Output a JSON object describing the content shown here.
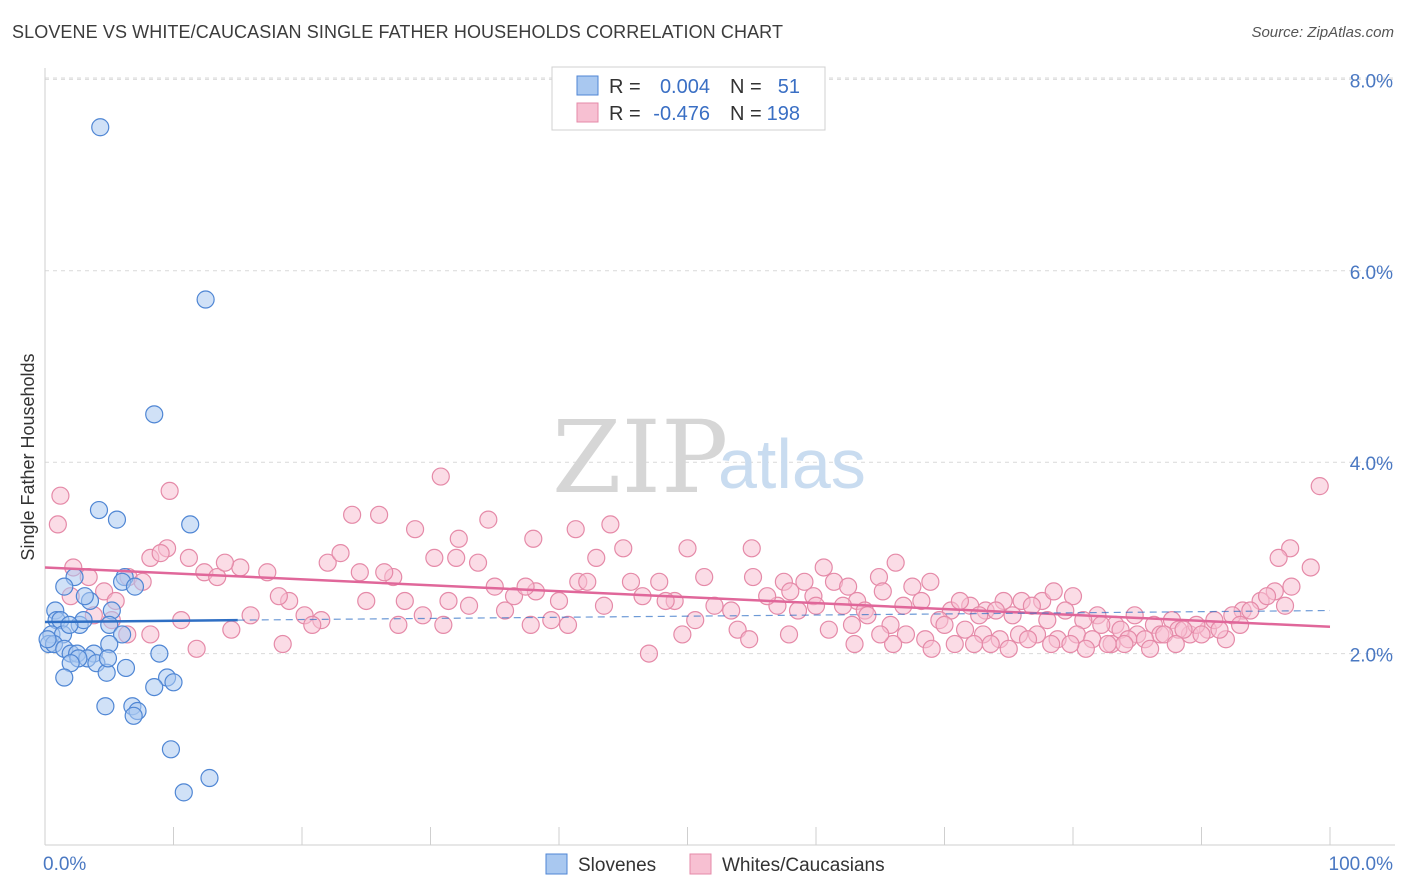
{
  "title": "SLOVENE VS WHITE/CAUCASIAN SINGLE FATHER HOUSEHOLDS CORRELATION CHART",
  "source": "Source: ZipAtlas.com",
  "watermark": {
    "zip": "ZIP",
    "atlas": "atlas"
  },
  "colors": {
    "slovene_fill": "#a9c8f0",
    "slovene_stroke": "#4f86d4",
    "slovene_line": "#2f6fc4",
    "white_fill": "#f7c0d2",
    "white_stroke": "#e58aa8",
    "white_line": "#e0679a",
    "grid": "#d9d9d9",
    "axis_text": "#4a78c2"
  },
  "legend": {
    "row1": {
      "r_label": "R =",
      "r_value": "0.004",
      "n_label": "N =",
      "n_value": "51"
    },
    "row2": {
      "r_label": "R =",
      "r_value": "-0.476",
      "n_label": "N =",
      "n_value": "198"
    }
  },
  "bottom_legend": {
    "s1": "Slovenes",
    "s2": "Whites/Caucasians"
  },
  "chart_data": {
    "type": "scatter",
    "title": "SLOVENE VS WHITE/CAUCASIAN SINGLE FATHER HOUSEHOLDS CORRELATION CHART",
    "xlabel": "",
    "ylabel": "Single Father Households",
    "xlim": [
      0,
      100
    ],
    "ylim": [
      0,
      8.2
    ],
    "x_tick_labels": [
      "0.0%",
      "100.0%"
    ],
    "y_ticks": [
      2.0,
      4.0,
      6.0,
      8.0
    ],
    "y_tick_labels": [
      "2.0%",
      "4.0%",
      "6.0%",
      "8.0%"
    ],
    "legend_position": "top-center",
    "series": [
      {
        "name": "Slovenes",
        "r": 0.004,
        "n": 51,
        "trend": {
          "x": [
            0,
            15
          ],
          "y": [
            2.33,
            2.35
          ]
        },
        "trend_ext": {
          "x": [
            15,
            100
          ],
          "y": [
            2.35,
            2.45
          ]
        },
        "points": [
          [
            4.3,
            7.5
          ],
          [
            12.5,
            5.7
          ],
          [
            8.5,
            4.5
          ],
          [
            4.2,
            3.5
          ],
          [
            5.6,
            3.4
          ],
          [
            11.3,
            3.35
          ],
          [
            2.3,
            2.8
          ],
          [
            1.5,
            2.7
          ],
          [
            6.2,
            2.8
          ],
          [
            3.5,
            2.55
          ],
          [
            6.0,
            2.75
          ],
          [
            7.0,
            2.7
          ],
          [
            0.8,
            2.45
          ],
          [
            5.2,
            2.45
          ],
          [
            0.9,
            2.35
          ],
          [
            1.2,
            2.35
          ],
          [
            2.7,
            2.3
          ],
          [
            3.0,
            2.35
          ],
          [
            5.0,
            2.3
          ],
          [
            0.5,
            2.2
          ],
          [
            1.4,
            2.2
          ],
          [
            6.0,
            2.2
          ],
          [
            0.3,
            2.1
          ],
          [
            0.7,
            2.1
          ],
          [
            1.5,
            2.05
          ],
          [
            2.0,
            2.0
          ],
          [
            2.5,
            2.0
          ],
          [
            3.8,
            2.0
          ],
          [
            3.3,
            1.95
          ],
          [
            5.0,
            2.1
          ],
          [
            2.6,
            1.95
          ],
          [
            8.9,
            2.0
          ],
          [
            2.0,
            1.9
          ],
          [
            4.0,
            1.9
          ],
          [
            6.3,
            1.85
          ],
          [
            4.8,
            1.8
          ],
          [
            1.5,
            1.75
          ],
          [
            9.5,
            1.75
          ],
          [
            10.0,
            1.7
          ],
          [
            8.5,
            1.65
          ],
          [
            4.7,
            1.45
          ],
          [
            6.8,
            1.45
          ],
          [
            7.2,
            1.4
          ],
          [
            6.9,
            1.35
          ],
          [
            9.8,
            1.0
          ],
          [
            12.8,
            0.7
          ],
          [
            10.8,
            0.55
          ],
          [
            0.2,
            2.15
          ],
          [
            1.9,
            2.3
          ],
          [
            3.1,
            2.6
          ],
          [
            4.9,
            1.95
          ]
        ]
      },
      {
        "name": "Whites/Caucasians",
        "r": -0.476,
        "n": 198,
        "trend": {
          "x": [
            0,
            100
          ],
          "y": [
            2.9,
            2.28
          ]
        },
        "points": [
          [
            1.2,
            3.65
          ],
          [
            1.0,
            3.35
          ],
          [
            9.7,
            3.7
          ],
          [
            23.9,
            3.45
          ],
          [
            26.0,
            3.45
          ],
          [
            28.8,
            3.3
          ],
          [
            30.8,
            3.85
          ],
          [
            34.5,
            3.4
          ],
          [
            32.2,
            3.2
          ],
          [
            38.0,
            3.2
          ],
          [
            41.3,
            3.3
          ],
          [
            44.0,
            3.35
          ],
          [
            50.0,
            3.1
          ],
          [
            55.0,
            3.1
          ],
          [
            99.2,
            3.75
          ],
          [
            96.9,
            3.1
          ],
          [
            98.5,
            2.9
          ],
          [
            96.0,
            3.0
          ],
          [
            2.2,
            2.9
          ],
          [
            3.4,
            2.8
          ],
          [
            6.5,
            2.8
          ],
          [
            8.2,
            3.0
          ],
          [
            11.2,
            3.0
          ],
          [
            12.4,
            2.85
          ],
          [
            13.4,
            2.8
          ],
          [
            15.2,
            2.9
          ],
          [
            17.3,
            2.85
          ],
          [
            19.0,
            2.55
          ],
          [
            22.0,
            2.95
          ],
          [
            24.5,
            2.85
          ],
          [
            27.1,
            2.8
          ],
          [
            30.3,
            3.0
          ],
          [
            32.0,
            3.0
          ],
          [
            33.7,
            2.95
          ],
          [
            35.0,
            2.7
          ],
          [
            36.5,
            2.6
          ],
          [
            38.2,
            2.65
          ],
          [
            40.0,
            2.55
          ],
          [
            41.5,
            2.75
          ],
          [
            42.9,
            3.0
          ],
          [
            45.6,
            2.75
          ],
          [
            47.8,
            2.75
          ],
          [
            49.0,
            2.55
          ],
          [
            51.3,
            2.8
          ],
          [
            53.4,
            2.45
          ],
          [
            55.1,
            2.8
          ],
          [
            57.0,
            2.5
          ],
          [
            58.6,
            2.45
          ],
          [
            59.1,
            2.75
          ],
          [
            60.6,
            2.9
          ],
          [
            61.4,
            2.75
          ],
          [
            62.5,
            2.7
          ],
          [
            63.2,
            2.55
          ],
          [
            64.9,
            2.8
          ],
          [
            66.2,
            2.95
          ],
          [
            67.5,
            2.7
          ],
          [
            68.9,
            2.75
          ],
          [
            70.5,
            2.45
          ],
          [
            72.0,
            2.5
          ],
          [
            73.2,
            2.45
          ],
          [
            74.6,
            2.55
          ],
          [
            76.0,
            2.55
          ],
          [
            77.6,
            2.55
          ],
          [
            78.5,
            2.65
          ],
          [
            80.0,
            2.6
          ],
          [
            81.9,
            2.4
          ],
          [
            83.3,
            2.3
          ],
          [
            84.8,
            2.4
          ],
          [
            86.3,
            2.3
          ],
          [
            87.7,
            2.35
          ],
          [
            89.1,
            2.2
          ],
          [
            90.5,
            2.25
          ],
          [
            91.9,
            2.15
          ],
          [
            93.2,
            2.45
          ],
          [
            94.6,
            2.55
          ],
          [
            95.7,
            2.65
          ],
          [
            97.0,
            2.7
          ],
          [
            4.6,
            2.65
          ],
          [
            5.5,
            2.55
          ],
          [
            7.6,
            2.75
          ],
          [
            9.5,
            3.1
          ],
          [
            10.6,
            2.35
          ],
          [
            14.0,
            2.95
          ],
          [
            16.0,
            2.4
          ],
          [
            18.2,
            2.6
          ],
          [
            20.2,
            2.4
          ],
          [
            21.5,
            2.35
          ],
          [
            23.0,
            3.05
          ],
          [
            25.0,
            2.55
          ],
          [
            26.4,
            2.85
          ],
          [
            28.0,
            2.55
          ],
          [
            29.4,
            2.4
          ],
          [
            31.4,
            2.55
          ],
          [
            33.0,
            2.5
          ],
          [
            35.8,
            2.45
          ],
          [
            37.4,
            2.7
          ],
          [
            39.4,
            2.35
          ],
          [
            40.7,
            2.3
          ],
          [
            42.2,
            2.75
          ],
          [
            43.5,
            2.5
          ],
          [
            45.0,
            3.1
          ],
          [
            46.5,
            2.6
          ],
          [
            48.3,
            2.55
          ],
          [
            50.6,
            2.35
          ],
          [
            52.1,
            2.5
          ],
          [
            53.9,
            2.25
          ],
          [
            56.2,
            2.6
          ],
          [
            57.5,
            2.75
          ],
          [
            59.8,
            2.6
          ],
          [
            61.0,
            2.25
          ],
          [
            62.1,
            2.5
          ],
          [
            63.8,
            2.45
          ],
          [
            65.2,
            2.65
          ],
          [
            66.8,
            2.5
          ],
          [
            68.2,
            2.55
          ],
          [
            69.6,
            2.35
          ],
          [
            71.2,
            2.55
          ],
          [
            72.7,
            2.4
          ],
          [
            74.0,
            2.45
          ],
          [
            75.3,
            2.4
          ],
          [
            76.8,
            2.5
          ],
          [
            78.0,
            2.35
          ],
          [
            79.4,
            2.45
          ],
          [
            80.8,
            2.35
          ],
          [
            82.2,
            2.3
          ],
          [
            83.7,
            2.25
          ],
          [
            85.0,
            2.2
          ],
          [
            86.8,
            2.2
          ],
          [
            88.2,
            2.25
          ],
          [
            89.6,
            2.3
          ],
          [
            91.0,
            2.35
          ],
          [
            92.4,
            2.4
          ],
          [
            93.8,
            2.45
          ],
          [
            95.1,
            2.6
          ],
          [
            60.0,
            2.5
          ],
          [
            62.8,
            2.3
          ],
          [
            64.0,
            2.4
          ],
          [
            65.8,
            2.3
          ],
          [
            67.0,
            2.2
          ],
          [
            68.5,
            2.15
          ],
          [
            70.0,
            2.3
          ],
          [
            71.6,
            2.25
          ],
          [
            73.0,
            2.2
          ],
          [
            74.3,
            2.15
          ],
          [
            75.8,
            2.2
          ],
          [
            77.2,
            2.2
          ],
          [
            78.8,
            2.15
          ],
          [
            80.3,
            2.2
          ],
          [
            81.5,
            2.15
          ],
          [
            83.0,
            2.1
          ],
          [
            84.3,
            2.15
          ],
          [
            85.6,
            2.15
          ],
          [
            87.1,
            2.2
          ],
          [
            88.6,
            2.25
          ],
          [
            90.0,
            2.2
          ],
          [
            91.4,
            2.25
          ],
          [
            66.0,
            2.1
          ],
          [
            69.0,
            2.05
          ],
          [
            72.3,
            2.1
          ],
          [
            75.0,
            2.05
          ],
          [
            78.3,
            2.1
          ],
          [
            81.0,
            2.05
          ],
          [
            84.0,
            2.1
          ],
          [
            86.0,
            2.05
          ],
          [
            88.0,
            2.1
          ],
          [
            63.0,
            2.1
          ],
          [
            65.0,
            2.2
          ],
          [
            70.8,
            2.1
          ],
          [
            73.6,
            2.1
          ],
          [
            76.5,
            2.15
          ],
          [
            79.8,
            2.1
          ],
          [
            82.7,
            2.1
          ],
          [
            54.8,
            2.15
          ],
          [
            57.9,
            2.2
          ],
          [
            49.6,
            2.2
          ],
          [
            37.8,
            2.3
          ],
          [
            31.0,
            2.3
          ],
          [
            27.5,
            2.3
          ],
          [
            20.8,
            2.3
          ],
          [
            14.5,
            2.25
          ],
          [
            11.8,
            2.05
          ],
          [
            8.2,
            2.2
          ],
          [
            6.4,
            2.2
          ],
          [
            2.0,
            2.6
          ],
          [
            3.8,
            2.4
          ],
          [
            5.2,
            2.35
          ],
          [
            9.0,
            3.05
          ],
          [
            18.5,
            2.1
          ],
          [
            47.0,
            2.0
          ],
          [
            93.0,
            2.3
          ],
          [
            96.5,
            2.5
          ],
          [
            58.0,
            2.65
          ]
        ]
      }
    ]
  }
}
